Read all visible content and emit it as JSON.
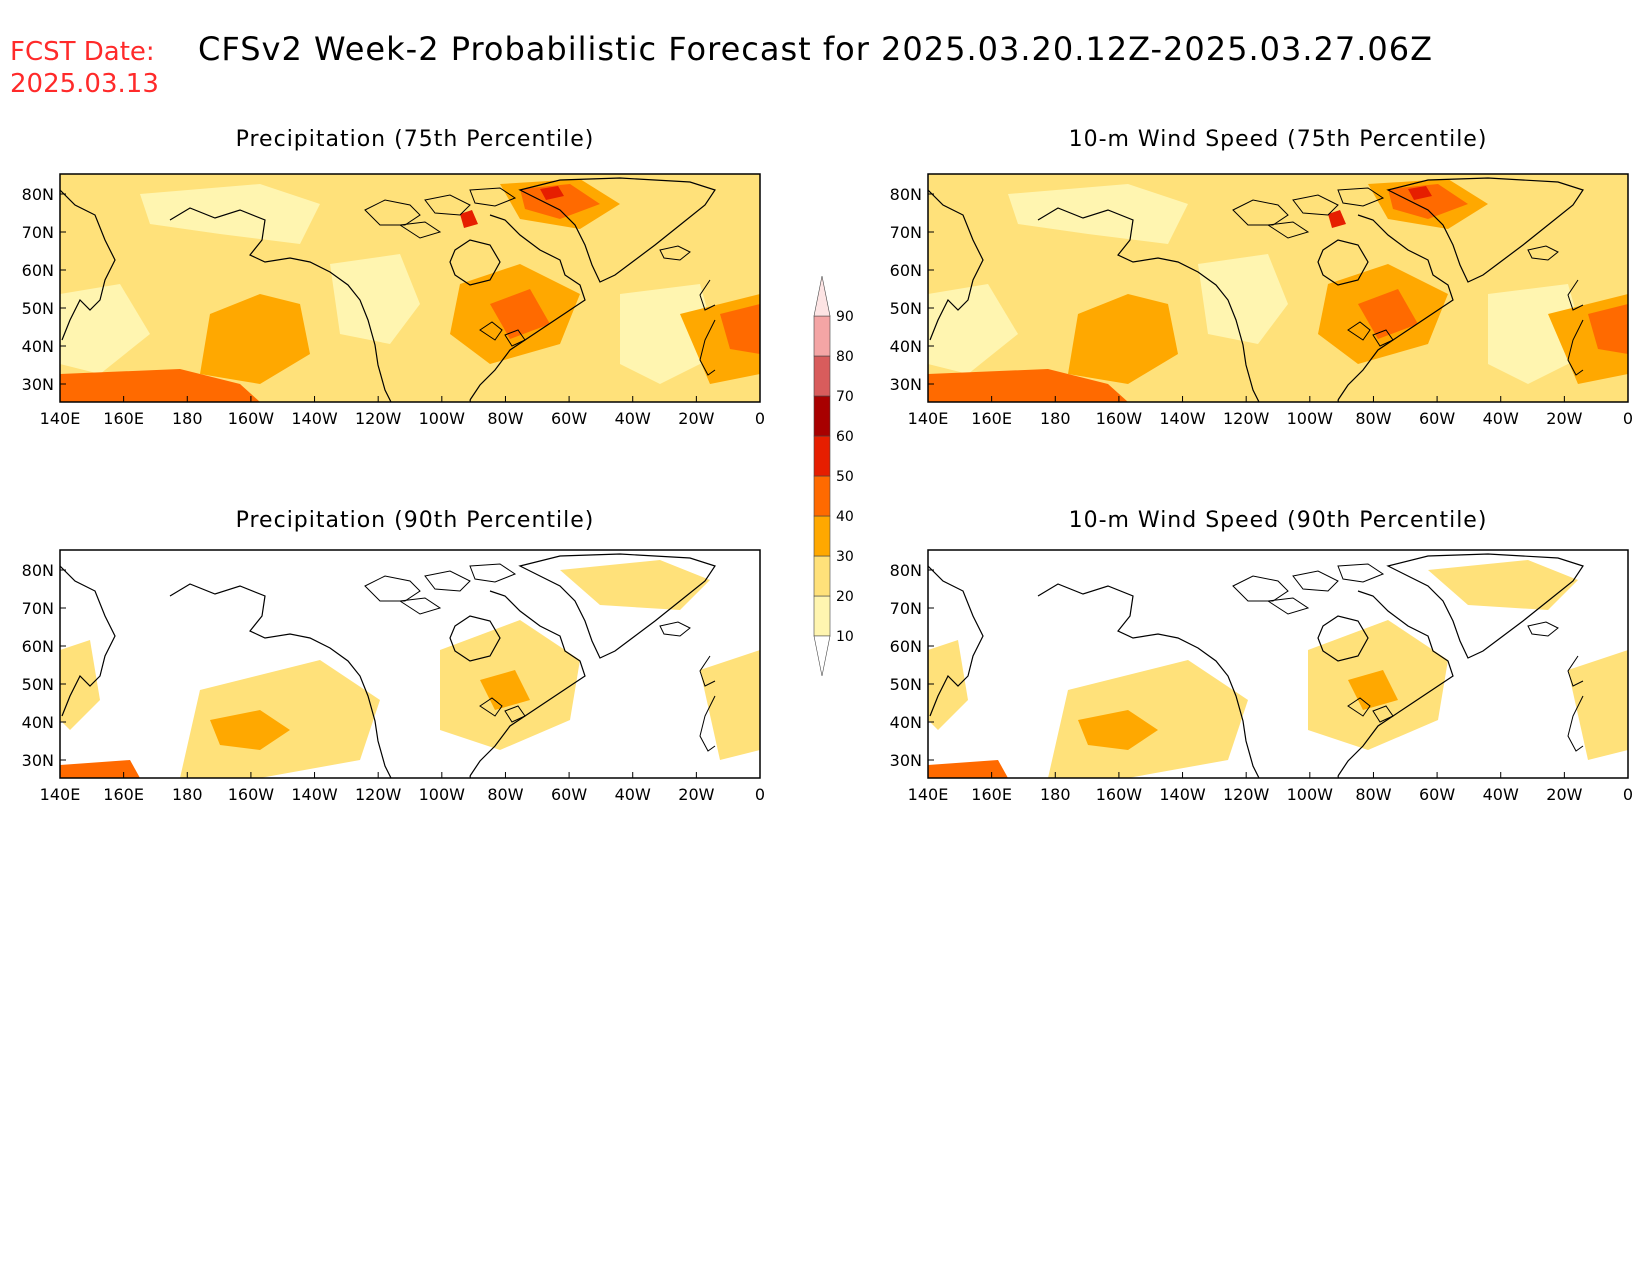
{
  "header": {
    "fcst_label": "FCST Date:",
    "fcst_date": "2025.03.13",
    "title": "CFSv2 Week-2 Probabilistic Forecast for 2025.03.20.12Z-2025.03.27.06Z"
  },
  "panels": [
    {
      "id": "p1",
      "title": "Precipitation (75th Percentile)",
      "level": "high"
    },
    {
      "id": "p2",
      "title": "10-m Wind Speed (75th Percentile)",
      "level": "high"
    },
    {
      "id": "p3",
      "title": "Precipitation (90th Percentile)",
      "level": "low"
    },
    {
      "id": "p4",
      "title": "10-m Wind Speed (90th Percentile)",
      "level": "low"
    }
  ],
  "axes": {
    "lat_labels": [
      "80N",
      "70N",
      "60N",
      "50N",
      "40N",
      "30N"
    ],
    "lon_labels": [
      "140E",
      "160E",
      "180",
      "160W",
      "140W",
      "120W",
      "100W",
      "80W",
      "60W",
      "40W",
      "20W",
      "0"
    ]
  },
  "colorbar": {
    "levels": [
      "10",
      "20",
      "30",
      "40",
      "50",
      "60",
      "70",
      "80",
      "90"
    ],
    "colors": [
      "#fff5b0",
      "#ffe17a",
      "#ffa800",
      "#ff6a00",
      "#e61e00",
      "#a80000",
      "#d85c5c",
      "#f4a5a5"
    ]
  }
}
